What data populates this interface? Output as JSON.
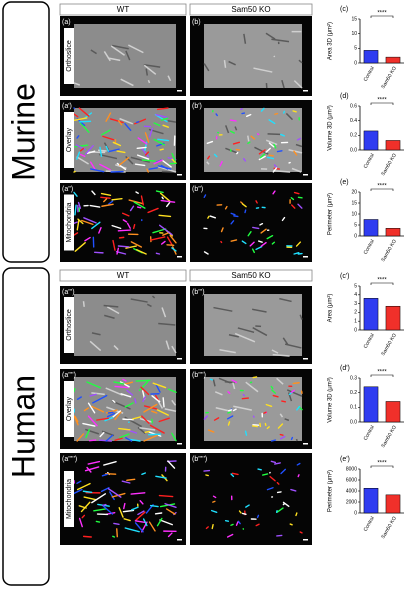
{
  "sections": [
    {
      "title": "Murine",
      "columns": [
        "WT",
        "Sam50 KO"
      ],
      "rows": [
        "Orthoslice",
        "Overlay",
        "Mitochondria"
      ],
      "panels": [
        [
          "(a)",
          "(b)"
        ],
        [
          "(a')",
          "(b')"
        ],
        [
          "(a'')",
          "(b'')"
        ]
      ]
    },
    {
      "title": "Human",
      "columns": [
        "WT",
        "Sam50 KO"
      ],
      "rows": [
        "Orthoslice",
        "Overlay",
        "Mitochondria"
      ],
      "panels": [
        [
          "(a''')",
          "(b''')"
        ],
        [
          "(a'''')",
          "(b'''')"
        ],
        [
          "(a''''')",
          "(b''''')"
        ]
      ]
    }
  ],
  "chart_data": [
    {
      "type": "bar",
      "label": "(c)",
      "ylabel": "Area 3D (μm²)",
      "categories": [
        "Control",
        "Sam50 KO"
      ],
      "values": [
        4.3,
        2.0
      ],
      "colors": [
        "#2f3cf0",
        "#f0302a"
      ],
      "ylim": [
        0,
        15
      ],
      "yticks": [
        0,
        5,
        10,
        15
      ],
      "annotation": "****"
    },
    {
      "type": "bar",
      "label": "(d)",
      "ylabel": "Volume 3D (μm³)",
      "categories": [
        "Control",
        "Sam50 KO"
      ],
      "values": [
        0.26,
        0.13
      ],
      "colors": [
        "#2f3cf0",
        "#f0302a"
      ],
      "ylim": [
        0,
        0.6
      ],
      "yticks": [
        {
          "value": 0,
          "label": "0.0"
        },
        0.2,
        0.4,
        0.6
      ],
      "annotation": "****"
    },
    {
      "type": "bar",
      "label": "(e)",
      "ylabel": "Perimeter (μm²)",
      "categories": [
        "Control",
        "Sam50 KO"
      ],
      "values": [
        7.5,
        3.5
      ],
      "colors": [
        "#2f3cf0",
        "#f0302a"
      ],
      "ylim": [
        0,
        20
      ],
      "yticks": [
        0,
        5,
        10,
        15,
        20
      ],
      "annotation": "****"
    },
    {
      "type": "bar",
      "label": "(c')",
      "ylabel": "Area (μm²)",
      "categories": [
        "Control",
        "Sam50 KO"
      ],
      "values": [
        3.6,
        2.7
      ],
      "colors": [
        "#2f3cf0",
        "#f0302a"
      ],
      "ylim": [
        0,
        5
      ],
      "yticks": [
        0,
        1,
        2,
        3,
        4,
        5
      ],
      "annotation": "****"
    },
    {
      "type": "bar",
      "label": "(d')",
      "ylabel": "Volume 3D (μm³)",
      "categories": [
        "Control",
        "Sam50 KO"
      ],
      "values": [
        0.24,
        0.14
      ],
      "colors": [
        "#2f3cf0",
        "#f0302a"
      ],
      "ylim": [
        0,
        0.3
      ],
      "yticks": [
        {
          "value": 0,
          "label": "0.0"
        },
        0.1,
        0.2,
        0.3
      ],
      "annotation": "****"
    },
    {
      "type": "bar",
      "label": "(e')",
      "ylabel": "Perimeter (μm²)",
      "categories": [
        "Control",
        "Sam50 KO"
      ],
      "values": [
        4500,
        3300
      ],
      "colors": [
        "#2f3cf0",
        "#f0302a"
      ],
      "ylim": [
        0,
        8000
      ],
      "yticks": [
        0,
        2000,
        4000,
        6000,
        8000
      ],
      "annotation": "****"
    }
  ]
}
